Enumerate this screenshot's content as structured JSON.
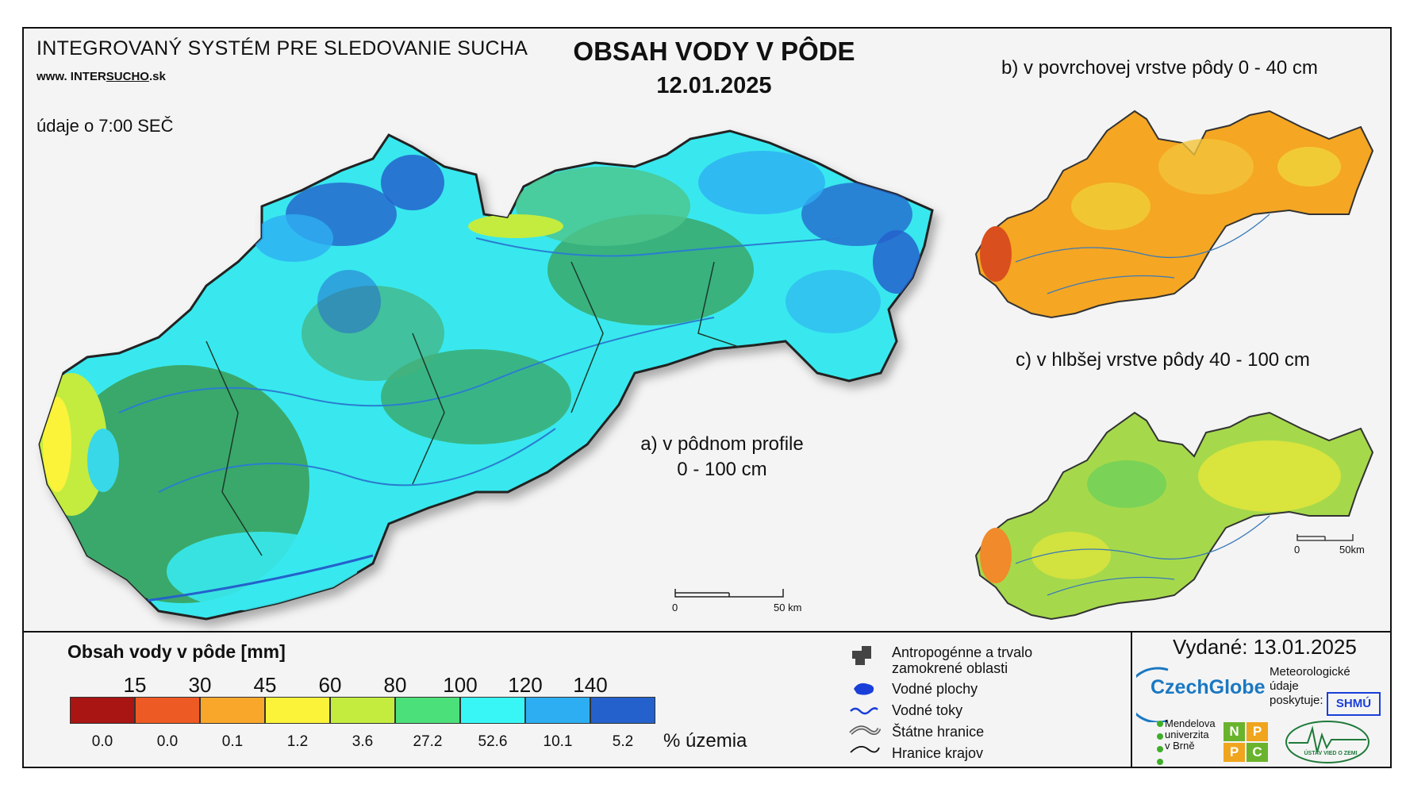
{
  "header": {
    "system_name": "INTEGROVANÝ SYSTÉM PRE SLEDOVANIE SUCHA",
    "website_prefix": "www. INTER",
    "website_highlight": "SUCHO",
    "website_suffix": ".sk",
    "data_time": "údaje o 7:00 SEČ",
    "title": "OBSAH VODY V PÔDE",
    "date": "12.01.2025"
  },
  "maps": {
    "main_label_line1": "a) v pôdnom profile",
    "main_label_line2": "0 - 100 cm",
    "surface_label": "b) v povrchovej vrstve pôdy 0 - 40 cm",
    "deep_label": "c) v hlbšej vrstve pôdy 40 - 100 cm",
    "main_scale": {
      "start": "0",
      "end": "50 km"
    },
    "small_scale": {
      "start": "0",
      "end": "50km"
    }
  },
  "legend": {
    "title": "Obsah vody v pôde  [mm]",
    "thresholds": [
      "15",
      "30",
      "45",
      "60",
      "80",
      "100",
      "120",
      "140"
    ],
    "classes": [
      {
        "color": "#a81513",
        "percent": "0.0"
      },
      {
        "color": "#ee5a23",
        "percent": "0.0"
      },
      {
        "color": "#f8a72b",
        "percent": "0.1"
      },
      {
        "color": "#faf33a",
        "percent": "1.2"
      },
      {
        "color": "#c3ec3f",
        "percent": "3.6"
      },
      {
        "color": "#4ce07a",
        "percent": "27.2"
      },
      {
        "color": "#38f6f6",
        "percent": "52.6"
      },
      {
        "color": "#2eaef2",
        "percent": "10.1"
      },
      {
        "color": "#2461cc",
        "percent": "5.2"
      }
    ],
    "percent_unit": "% územia",
    "symbols": {
      "anthropogenic_line1": "Antropogénne a trvalo",
      "anthropogenic_line2": "zamokrené oblasti",
      "water_bodies": "Vodné plochy",
      "water_streams": "Vodné toky",
      "state_borders": "Štátne hranice",
      "region_borders": "Hranice krajov"
    }
  },
  "footer": {
    "issued": "Vydané: 13.01.2025",
    "czechglobe": "CzechGlobe",
    "meteo_line1": "Meteorologické",
    "meteo_line2": "údaje",
    "meteo_line3": "poskytuje:",
    "shmu": "SHMÚ",
    "mendel_line1": "Mendelova",
    "mendel_line2": "univerzita",
    "mendel_line3": "v Brně",
    "nppc": [
      "N",
      "P",
      "P",
      "C"
    ],
    "uvz": "ÚSTAV VIED O ZEMI"
  }
}
